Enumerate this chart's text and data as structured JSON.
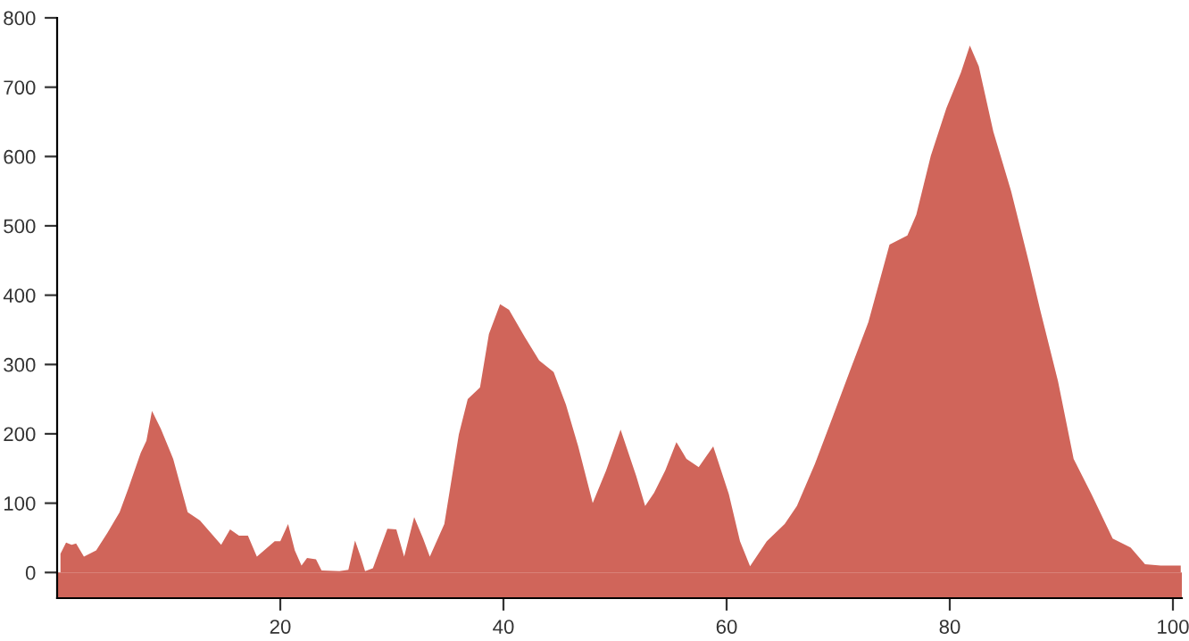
{
  "chart_data": {
    "type": "area",
    "color": "#d0655a",
    "bands": [
      {
        "axis": "y",
        "from": -37,
        "to": 0,
        "color": "#d0655a"
      }
    ],
    "x": [
      0.3,
      0.8,
      1.3,
      1.7,
      2.4,
      3.5,
      4.5,
      5.6,
      6.4,
      7.5,
      8,
      8.5,
      9.3,
      10.4,
      11.7,
      12.8,
      14.7,
      15.5,
      16.3,
      17.1,
      17.9,
      19.5,
      20,
      20.7,
      21.3,
      21.9,
      22.4,
      23.2,
      23.7,
      25.3,
      26.1,
      26.7,
      27.2,
      27.6,
      28.3,
      29.6,
      30.4,
      31.1,
      32,
      32.8,
      33.4,
      34.7,
      36,
      36.8,
      37.9,
      38.7,
      39.7,
      40.5,
      41.9,
      43.2,
      44.5,
      45.6,
      46.7,
      48,
      49.2,
      50.5,
      51.9,
      52.7,
      53.5,
      54.5,
      55.5,
      56.4,
      57.5,
      58.8,
      60.2,
      61.2,
      62.1,
      63.6,
      65.2,
      66.3,
      67.9,
      69.5,
      71.1,
      72.7,
      74.6,
      76.2,
      77,
      78.3,
      79.7,
      81,
      81.8,
      82.6,
      83.9,
      85.5,
      87.1,
      88.1,
      89.7,
      91.1,
      92.7,
      94.6,
      96.2,
      97.5,
      98.9,
      100.7
    ],
    "values": [
      27,
      43,
      40,
      42,
      23,
      32,
      57,
      87,
      122,
      173,
      190,
      233,
      207,
      164,
      87,
      75,
      40,
      62,
      53,
      53,
      23,
      45,
      45,
      70,
      32,
      10,
      21,
      19,
      3,
      2,
      4,
      46,
      23,
      2,
      6,
      63,
      62,
      23,
      80,
      49,
      23,
      70,
      199,
      250,
      267,
      344,
      387,
      379,
      340,
      306,
      289,
      242,
      182,
      100,
      147,
      206,
      139,
      96,
      115,
      147,
      188,
      164,
      152,
      182,
      113,
      45,
      9,
      45,
      70,
      96,
      156,
      224,
      293,
      361,
      473,
      486,
      516,
      601,
      670,
      721,
      760,
      730,
      636,
      550,
      447,
      379,
      276,
      164,
      113,
      49,
      36,
      12,
      10,
      10
    ],
    "xlim": [
      0,
      100.8
    ],
    "ylim": [
      -37,
      800
    ],
    "xticks": [
      20,
      40,
      60,
      80,
      100
    ],
    "yticks": [
      0,
      100,
      200,
      300,
      400,
      500,
      600,
      700,
      800
    ],
    "grid": false,
    "legend": false
  }
}
